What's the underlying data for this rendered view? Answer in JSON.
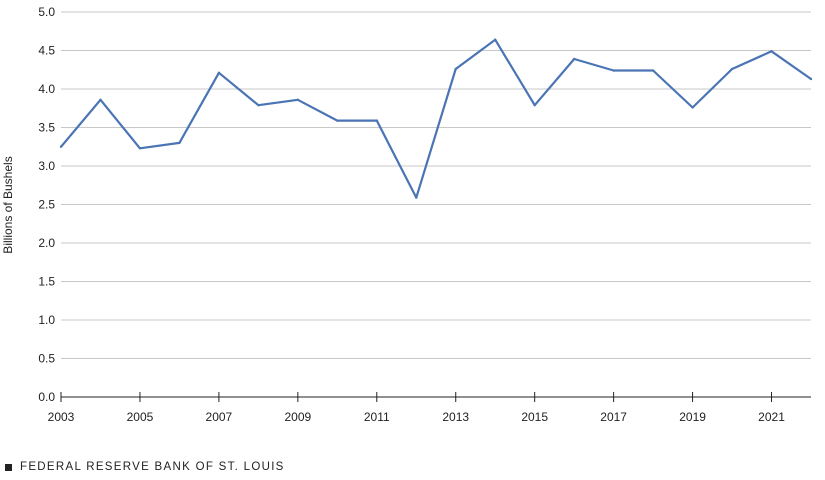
{
  "chart_data": {
    "type": "line",
    "ylabel": "Billions of Bushels",
    "xlabel": "",
    "ylim": [
      0,
      5
    ],
    "xlim": [
      2003,
      2022
    ],
    "yticks": [
      "0.0",
      "0.5",
      "1.0",
      "1.5",
      "2.0",
      "2.5",
      "3.0",
      "3.5",
      "4.0",
      "4.5",
      "5.0"
    ],
    "xticks": [
      "2003",
      "2005",
      "2007",
      "2009",
      "2011",
      "2013",
      "2015",
      "2017",
      "2019",
      "2021"
    ],
    "grid": true,
    "line_color": "#4a74b4",
    "series": [
      {
        "x": [
          2003,
          2004,
          2005,
          2006,
          2007,
          2008,
          2009,
          2010,
          2011,
          2012,
          2013,
          2014,
          2015,
          2016,
          2017,
          2018,
          2019,
          2020,
          2021,
          2022
        ],
        "values": [
          3.25,
          3.86,
          3.23,
          3.3,
          4.21,
          3.79,
          3.86,
          3.59,
          3.59,
          2.59,
          4.26,
          4.64,
          3.79,
          4.39,
          4.24,
          4.24,
          3.76,
          4.26,
          4.49,
          4.13
        ]
      }
    ]
  },
  "footer": {
    "source": "FEDERAL RESERVE BANK OF ST. LOUIS"
  }
}
